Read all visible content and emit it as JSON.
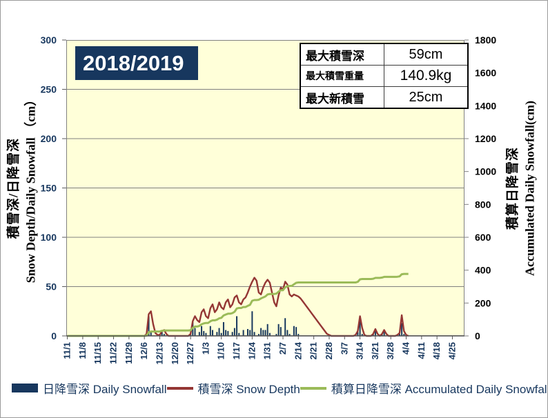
{
  "title": "2018/2019",
  "stats_table": {
    "rows": [
      {
        "label": "最大積雪深",
        "value": "59cm"
      },
      {
        "label": "最大積雪重量",
        "value": "140.9kg"
      },
      {
        "label": "最大新積雪",
        "value": "25cm"
      }
    ]
  },
  "axes": {
    "left": {
      "title_ja": "積雪深/日降雪深",
      "title_en": "Snow Depth/Daily Snowfall （cm）"
    },
    "right": {
      "title_ja": "積算日降雪深",
      "title_en": "Accumulated Daily Snowfall(cm)"
    }
  },
  "legend": {
    "position": "bottom",
    "items": [
      {
        "label": "日降雪深 Daily Snowfall",
        "swatch": "bar",
        "color": "#17375E"
      },
      {
        "label": "積雪深 Snow Depth",
        "swatch": "line",
        "color": "#943634"
      },
      {
        "label": "積算日降雪深 Accumulated Daily Snowfall",
        "swatch": "line",
        "color": "#9BBB59"
      }
    ]
  },
  "colors": {
    "plot_bg": "#FFFFD9",
    "grid": "#808080",
    "axis_line": "#595959",
    "title_bg": "#17375E",
    "axis_text": "#17375E",
    "right_axis_text": "#000000"
  },
  "chart_data": {
    "type": "combo",
    "title": "2018/2019",
    "grid": "horizontal",
    "legend_position": "bottom",
    "months": [
      {
        "m": 11,
        "days": 30
      },
      {
        "m": 12,
        "days": 31
      },
      {
        "m": 1,
        "days": 31
      },
      {
        "m": 2,
        "days": 28
      },
      {
        "m": 3,
        "days": 31
      },
      {
        "m": 4,
        "days": 30
      }
    ],
    "x_tick_every_days": 7,
    "x_tick_labels": [
      "11/1",
      "11/8",
      "11/15",
      "11/22",
      "11/29",
      "12/6",
      "12/13",
      "12/20",
      "12/27",
      "1/3",
      "1/10",
      "1/17",
      "1/24",
      "1/31",
      "2/7",
      "2/14",
      "2/21",
      "2/28",
      "3/7",
      "3/14",
      "3/21",
      "3/28",
      "4/4",
      "4/11",
      "4/18",
      "4/25"
    ],
    "left_axis": {
      "min": 0,
      "max": 300,
      "step": 50,
      "gridline_step": 50
    },
    "right_axis": {
      "min": 0,
      "max": 1800,
      "step": 200
    },
    "line_end_date": "4/5",
    "series": [
      {
        "name": "日降雪深 Daily Snowfall",
        "type": "bar",
        "axis": "left",
        "color": "#17375E",
        "points": {
          "12/7": 2,
          "12/8": 20,
          "12/9": 5,
          "12/14": 4,
          "12/15": 2,
          "12/27": 2,
          "12/28": 14,
          "12/29": 8,
          "12/31": 4,
          "1/1": 10,
          "1/2": 5,
          "1/3": 3,
          "1/5": 10,
          "1/6": 6,
          "1/8": 4,
          "1/9": 8,
          "1/10": 3,
          "1/11": 14,
          "1/12": 6,
          "1/13": 5,
          "1/15": 4,
          "1/16": 8,
          "1/17": 20,
          "1/18": 3,
          "1/20": 6,
          "1/22": 7,
          "1/23": 6,
          "1/24": 25,
          "1/25": 4,
          "1/27": 2,
          "1/28": 8,
          "1/29": 6,
          "1/30": 6,
          "1/31": 12,
          "2/1": 3,
          "2/4": 2,
          "2/5": 12,
          "2/6": 9,
          "2/8": 18,
          "2/9": 6,
          "2/10": 2,
          "2/12": 10,
          "2/13": 9,
          "2/14": 2,
          "3/13": 4,
          "3/14": 15,
          "3/15": 2,
          "3/20": 2,
          "3/21": 5,
          "3/24": 2,
          "3/25": 4,
          "3/31": 1,
          "4/1": 2,
          "4/2": 13,
          "4/3": 2
        }
      },
      {
        "name": "積雪深 Snow Depth",
        "type": "line",
        "axis": "left",
        "color": "#943634",
        "points": {
          "12/7": 2,
          "12/8": 22,
          "12/9": 25,
          "12/10": 12,
          "12/11": 3,
          "12/12": 1,
          "12/13": 1,
          "12/14": 5,
          "12/15": 6,
          "12/16": 2,
          "12/27": 2,
          "12/28": 15,
          "12/29": 20,
          "12/30": 16,
          "12/31": 14,
          "1/1": 24,
          "1/2": 27,
          "1/3": 20,
          "1/4": 18,
          "1/5": 28,
          "1/6": 32,
          "1/7": 24,
          "1/8": 27,
          "1/9": 34,
          "1/10": 29,
          "1/11": 27,
          "1/12": 34,
          "1/13": 37,
          "1/14": 29,
          "1/15": 32,
          "1/16": 39,
          "1/17": 41,
          "1/18": 34,
          "1/19": 32,
          "1/20": 37,
          "1/21": 39,
          "1/22": 44,
          "1/23": 50,
          "1/24": 55,
          "1/25": 59,
          "1/26": 56,
          "1/27": 44,
          "1/28": 42,
          "1/29": 49,
          "1/30": 54,
          "1/31": 57,
          "2/1": 54,
          "2/2": 44,
          "2/3": 34,
          "2/4": 30,
          "2/5": 41,
          "2/6": 49,
          "2/7": 47,
          "2/8": 55,
          "2/9": 52,
          "2/10": 42,
          "2/11": 40,
          "2/12": 42,
          "2/13": 41,
          "2/14": 40,
          "2/15": 38,
          "2/16": 35,
          "2/17": 32,
          "2/18": 29,
          "2/19": 26,
          "2/20": 23,
          "2/21": 20,
          "2/22": 17,
          "2/23": 14,
          "2/24": 11,
          "2/25": 8,
          "2/26": 5,
          "2/27": 2,
          "2/28": 1,
          "3/12": 1,
          "3/13": 5,
          "3/14": 20,
          "3/15": 8,
          "3/16": 1,
          "3/20": 2,
          "3/21": 7,
          "3/22": 2,
          "3/24": 2,
          "3/25": 6,
          "3/26": 2,
          "3/31": 1,
          "4/1": 3,
          "4/2": 21,
          "4/3": 5,
          "4/4": 1
        }
      },
      {
        "name": "積算日降雪深 Accumulated Daily Snowfall",
        "type": "line",
        "axis": "right",
        "color": "#9BBB59",
        "derived_from": "cumulative sum of 日降雪深 Daily Snowfall",
        "end_value": 377
      }
    ]
  }
}
